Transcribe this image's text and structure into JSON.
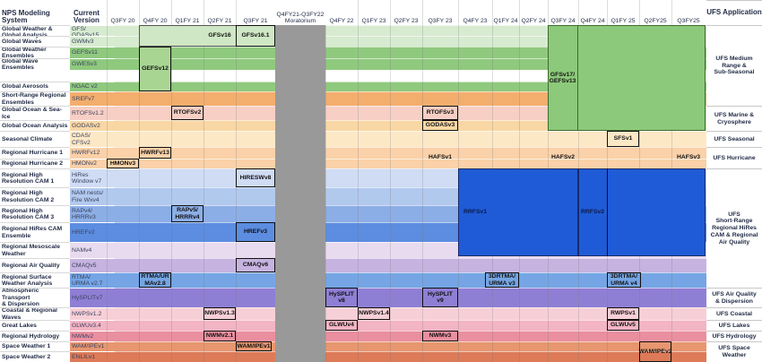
{
  "header": {
    "system": "NPS Modeling System",
    "version": "Current Version",
    "application": "UFS Application",
    "moratorium": "Q4FY21-Q3FY22\nMoratorium"
  },
  "quarters": [
    {
      "q": "Q3",
      "fy": "FY 20"
    },
    {
      "q": "Q4",
      "fy": "FY 20"
    },
    {
      "q": "Q1",
      "fy": "FY 21"
    },
    {
      "q": "Q2",
      "fy": "FY 21"
    },
    {
      "q": "Q3",
      "fy": "FY 21"
    },
    {
      "q": "Q4",
      "fy": "FY 22"
    },
    {
      "q": "Q1",
      "fy": "FY 23"
    },
    {
      "q": "Q2",
      "fy": "FY 23"
    },
    {
      "q": "Q3",
      "fy": "FY 23"
    },
    {
      "q": "Q4",
      "fy": "FY 23"
    },
    {
      "q": "Q1",
      "fy": "FY 24"
    },
    {
      "q": "Q2",
      "fy": "FY 24"
    },
    {
      "q": "Q3",
      "fy": "FY 24"
    },
    {
      "q": "Q4",
      "fy": "FY 24"
    },
    {
      "q": "Q1",
      "fy": "FY 25"
    },
    {
      "q": "Q2",
      "fy": "FY25"
    },
    {
      "q": "Q3",
      "fy": "FY25"
    }
  ],
  "rows": [
    {
      "system": "Global Weather &\nGlobal Analysis",
      "version": "GFS/\nGDASv15",
      "color": "#d7ebd0"
    },
    {
      "system": "Global Waves",
      "version": "GWMv3",
      "color": "#d7ebd0"
    },
    {
      "system": "Global Weather\nEnsembles",
      "version": "GEFSv11",
      "color": "#8fc97e"
    },
    {
      "system": "Global Wave\nEnsembles",
      "version": "GWESv3",
      "color": "#8fc97e"
    },
    {
      "system": "Global Aerosols",
      "version": "NGAC v2",
      "color": "#8fc97e"
    },
    {
      "system": "Short-Range Regional\nEnsembles",
      "version": "SREFv7",
      "color": "#f3ae6e"
    },
    {
      "system": "Global Ocean & Sea-Ice",
      "version": "RTOFSv1.2",
      "color": "#f7cfc4"
    },
    {
      "system": "Global Ocean Analysis",
      "version": "GODASv2",
      "color": "#f9d7a4"
    },
    {
      "system": "Seasonal Climate",
      "version": "CDAS/\nCFSv2",
      "color": "#fde8c6"
    },
    {
      "system": "Regional Hurricane 1",
      "version": "HWRFv12",
      "color": "#fad1a8"
    },
    {
      "system": "Regional Hurricane 2",
      "version": "HMONv2",
      "color": "#fad1a8"
    },
    {
      "system": "Regional High\nResolution CAM 1",
      "version": "HiRes\nWindow v7",
      "color": "#cfdcf4"
    },
    {
      "system": "Regional High\nResolution CAM 2",
      "version": "NAM nests/\nFire Wxv4",
      "color": "#b2c9ee"
    },
    {
      "system": "Regional High\nResolution CAM 3",
      "version": "RAPv4/\nHRRRv3",
      "color": "#8caee6"
    },
    {
      "system": "Regional HiRes CAM\nEnsemble",
      "version": "HREFv2",
      "color": "#5c8de0"
    },
    {
      "system": "Regional Mesoscale\nWeather",
      "version": "NAMv4",
      "color": "#e9dbef"
    },
    {
      "system": "Regional Air Quality",
      "version": "CMAQv5",
      "color": "#c6b3e0"
    },
    {
      "system": "Regional Surface\nWeather Analysis",
      "version": "RTMA/\nURMA v2.7",
      "color": "#75a5e4"
    },
    {
      "system": "Atmospheric Transport\n& Dispersion",
      "version": "HySPLITv7",
      "color": "#8f7fd4"
    },
    {
      "system": "Coastal & Regional\nWaves",
      "version": "NWPSv1.2",
      "color": "#f7cfd7"
    },
    {
      "system": "Great Lakes",
      "version": "GLWUv3.4",
      "color": "#f3b4c4"
    },
    {
      "system": "Regional Hydrology",
      "version": "NWMv2",
      "color": "#ea8f9f"
    },
    {
      "system": "Space Weather 1",
      "version": "WAM/IPEv1",
      "color": "#e7966f"
    },
    {
      "system": "Space Weather 2",
      "version": "ENLILv1",
      "color": "#dd7a58"
    }
  ],
  "labels": {
    "gfsv16": "GFSv16",
    "gfsv161": "GFSv16.1",
    "gefsv12": "GEFSv12",
    "rtofsv2": "RTOFSv2",
    "rtofsv3": "RTOFSv3",
    "godasv3": "GODASv3",
    "gfsv17": "GFSv17/\nGEFSv13",
    "sfsv1": "SFSv1",
    "hwrfv13": "HWRFv13",
    "hmonv3": "HMONv3",
    "hafsv1": "HAFSv1",
    "hafsv2": "HAFSv2",
    "hafsv3": "HAFSv3",
    "hireswv8": "HIRESWv8",
    "rapv5": "RAPv5/\nHRRRv4",
    "hrefv3": "HREFv3",
    "rrfsv1": "RRFSv1",
    "rrfsv2": "RRFSv2",
    "cmaqv6": "CMAQv6",
    "rtmav28": "RTMA/UR\nMAv2.8",
    "3drtma1": "3DRTMA/\nURMA v3",
    "3drtma2": "3DRTMA/\nURMA v4",
    "hysplit8": "HySPLIT\nv8",
    "hysplit9": "HySPLIT\nv9",
    "nwpsv13": "NWPSv1.3",
    "nwpsv14": "NWPSv1.4",
    "rwpsv1": "RWPSv1",
    "glwuv4": "GLWUv4",
    "glwuv5": "GLWUv5",
    "nwmv21": "NWMv2.1",
    "nwmv3": "NWMv3",
    "wamipev1": "WAM/IPEv1",
    "wamipev2": "WAM/IPEv2"
  },
  "applications": {
    "medium": "UFS Medium\nRange &\nSub-Seasonal",
    "marine": "UFS Marine &\nCryosphere",
    "seasonal": "UFS Seasonal",
    "hurricane": "UFS Hurricane",
    "shortrange": "UFS\nShort-Range\nRegional HiRes\nCAM & Regional\nAir Quality",
    "airquality": "UFS Air Quality\n& Dispersion",
    "coastal": "UFS Coastal",
    "lakes": "UFS Lakes",
    "hydrology": "UFS Hydrology",
    "space": "UFS Space\nWeather"
  },
  "colors": {
    "gfs_block": "#c5e3b8",
    "gefs_block": "#b7dca6",
    "ufs_green": "#8dc97a",
    "rrfs_blue": "#1f5bd6",
    "moratorium": "#999999"
  }
}
